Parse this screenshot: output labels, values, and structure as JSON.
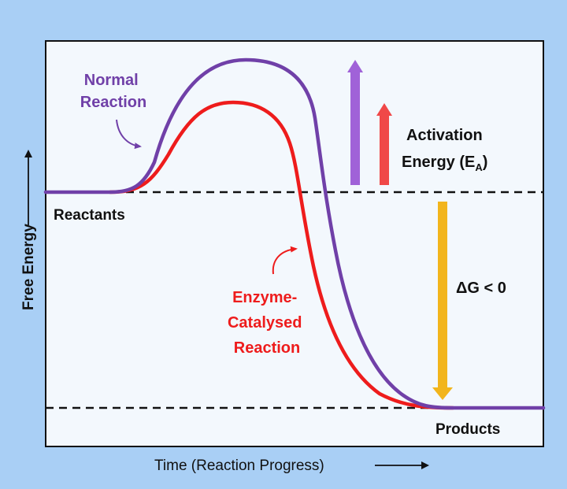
{
  "colors": {
    "frame": "#a9cff5",
    "plot_bg": "#f3f8fd",
    "normal": "#7040a8",
    "enzyme": "#ee1c1c",
    "delta_arrow": "#f2b51c",
    "dashed": "#111111",
    "text": "#111111"
  },
  "labels": {
    "normal_line1": "Normal",
    "normal_line2": "Reaction",
    "activation_line1": "Activation",
    "activation_line2": "Energy (E",
    "activation_sub": "A",
    "activation_close": ")",
    "reactants": "Reactants",
    "products": "Products",
    "delta_g": "ΔG < 0",
    "enzyme_line1": "Enzyme-",
    "enzyme_line2": "Catalysed",
    "enzyme_line3": "Reaction"
  },
  "axes": {
    "y_label": "Free Energy",
    "x_label": "Time (Reaction Progress)"
  },
  "icons": {
    "normal_pointer": "curved-arrow-icon",
    "enzyme_pointer": "curved-arrow-icon",
    "y_axis_arrow": "arrow-right-icon",
    "x_axis_arrow": "arrow-right-icon"
  }
}
